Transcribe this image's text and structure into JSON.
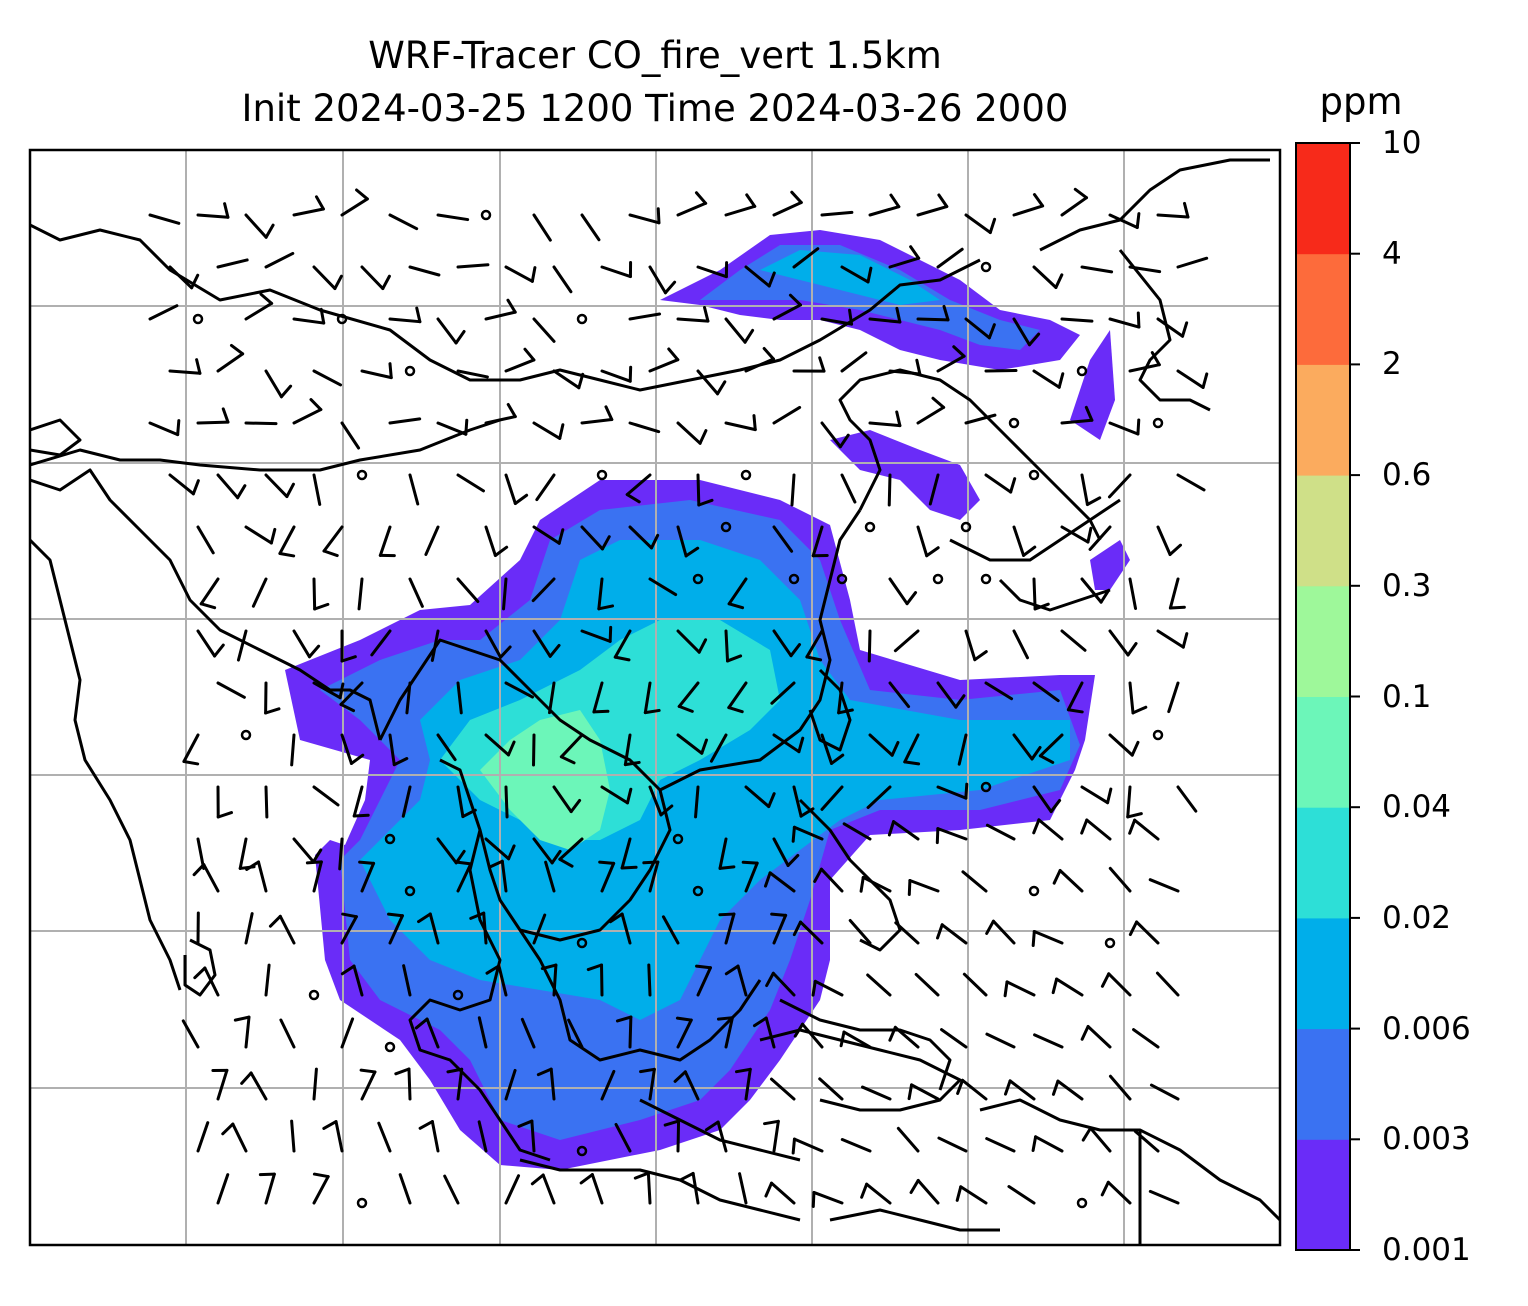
{
  "title": {
    "line1": "WRF-Tracer CO_fire_vert 1.5km",
    "line2": "Init 2024-03-25 1200 Time 2024-03-26 2000"
  },
  "colorbar": {
    "unit": "ppm",
    "levels": [
      "0.001",
      "0.003",
      "0.006",
      "0.02",
      "0.04",
      "0.1",
      "0.3",
      "0.6",
      "2",
      "4",
      "10"
    ],
    "colors": [
      "#6a2cf8",
      "#3a72f2",
      "#00aeea",
      "#2ddfd7",
      "#6cf6b9",
      "#9ef89a",
      "#cfe088",
      "#fbab5e",
      "#fd6b3b",
      "#f72a1a"
    ]
  },
  "map": {
    "grid": true,
    "grid_color": "#b0b0b0",
    "coastline_color": "#000000",
    "wind_barb_color": "#000000"
  }
}
